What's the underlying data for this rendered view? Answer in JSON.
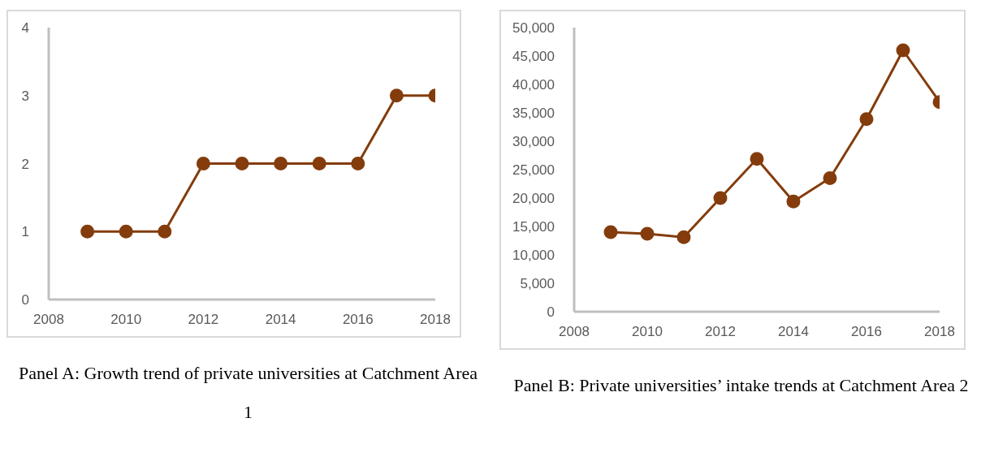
{
  "chart_data": [
    {
      "type": "line",
      "title": "Panel A: Growth trend of private universities at Catchment Area 1",
      "x": [
        2009,
        2010,
        2011,
        2012,
        2013,
        2014,
        2015,
        2016,
        2017,
        2018
      ],
      "series": [
        {
          "color": "#843c0c",
          "values": [
            1,
            1,
            1,
            2,
            2,
            2,
            2,
            2,
            3,
            3
          ]
        }
      ],
      "xlim": [
        2008,
        2018
      ],
      "xticks": [
        2008,
        2010,
        2012,
        2014,
        2016,
        2018
      ],
      "ylim": [
        0,
        4
      ],
      "yticks": [
        0,
        1,
        2,
        3,
        4
      ],
      "grid": false,
      "legend": false,
      "marker": "circle",
      "line_style": "solid"
    },
    {
      "type": "line",
      "title": "Panel B: Private universities’ intake trends at Catchment Area 2",
      "x": [
        2009,
        2010,
        2011,
        2012,
        2013,
        2014,
        2015,
        2016,
        2017,
        2018
      ],
      "series": [
        {
          "color": "#843c0c",
          "values": [
            14000,
            13700,
            13100,
            20000,
            26900,
            19400,
            23500,
            33900,
            46000,
            36900
          ]
        }
      ],
      "xlim": [
        2008,
        2018
      ],
      "xticks": [
        2008,
        2010,
        2012,
        2014,
        2016,
        2018
      ],
      "ylim": [
        0,
        50000
      ],
      "yticks": [
        0,
        {
          "value": 5000,
          "label": "5,000"
        },
        {
          "value": 10000,
          "label": "10,000"
        },
        {
          "value": 15000,
          "label": "15,000"
        },
        {
          "value": 20000,
          "label": "20,000"
        },
        {
          "value": 25000,
          "label": "25,000"
        },
        {
          "value": 30000,
          "label": "30,000"
        },
        {
          "value": 35000,
          "label": "35,000"
        },
        {
          "value": 40000,
          "label": "40,000"
        },
        {
          "value": 45000,
          "label": "45,000"
        },
        {
          "value": 50000,
          "label": "50,000"
        }
      ],
      "grid": false,
      "legend": false,
      "marker": "circle",
      "line_style": "solid"
    }
  ]
}
